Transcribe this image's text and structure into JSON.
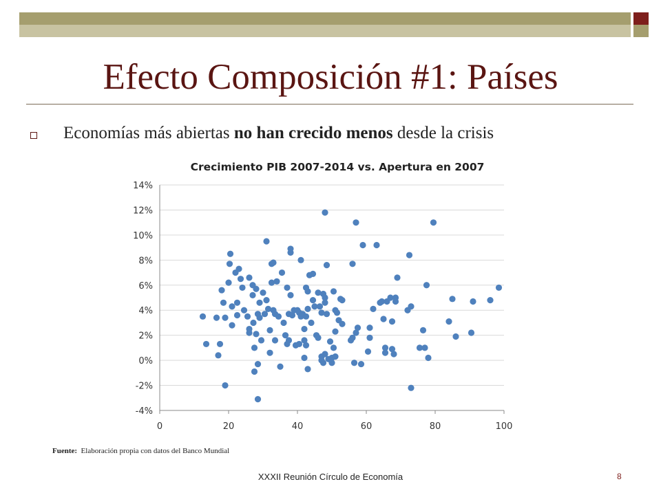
{
  "slide": {
    "title": "Efecto Composición #1: Países",
    "bullet": {
      "pre": "Economías más abiertas ",
      "bold": "no han crecido menos",
      "post": " desde la crisis"
    },
    "source_label": "Fuente:",
    "source_text": "Elaboración propia con datos del Banco Mundial",
    "footer": "XXXII Reunión Círculo de Economía",
    "page_number": "8"
  },
  "colors": {
    "title": "#5a1512",
    "accent_dark": "#7e1f1c",
    "accent_olive": "#a59e6e",
    "marker": "#4f81bd",
    "grid": "#d9d9d9"
  },
  "chart_data": {
    "type": "scatter",
    "title": "Crecimiento PIB 2007-2014 vs. Apertura en 2007",
    "xlabel": "",
    "ylabel": "",
    "xlim": [
      0,
      100
    ],
    "ylim": [
      -4,
      14
    ],
    "x_ticks": [
      0,
      20,
      40,
      60,
      80,
      100
    ],
    "x_tick_labels": [
      "0",
      "20",
      "40",
      "60",
      "80",
      "100"
    ],
    "y_ticks": [
      -4,
      -2,
      0,
      2,
      4,
      6,
      8,
      10,
      12,
      14
    ],
    "y_tick_labels": [
      "-4%",
      "-2%",
      "0%",
      "2%",
      "4%",
      "6%",
      "8%",
      "10%",
      "12%",
      "14%"
    ],
    "grid": "horizontal",
    "legend": "none",
    "points": [
      [
        12.5,
        3.5
      ],
      [
        13.5,
        1.3
      ],
      [
        16.5,
        3.4
      ],
      [
        17,
        0.4
      ],
      [
        17.5,
        1.3
      ],
      [
        18,
        5.6
      ],
      [
        18.5,
        4.6
      ],
      [
        19,
        -2.0
      ],
      [
        19,
        3.4
      ],
      [
        20,
        6.2
      ],
      [
        20.3,
        7.7
      ],
      [
        20.5,
        8.5
      ],
      [
        21,
        4.3
      ],
      [
        21,
        2.8
      ],
      [
        22,
        7.0
      ],
      [
        22.5,
        4.6
      ],
      [
        22.5,
        3.6
      ],
      [
        23,
        7.3
      ],
      [
        23.5,
        6.5
      ],
      [
        24,
        5.8
      ],
      [
        24.5,
        4.0
      ],
      [
        25.5,
        3.5
      ],
      [
        26,
        6.6
      ],
      [
        26,
        2.5
      ],
      [
        26,
        2.2
      ],
      [
        27,
        5.2
      ],
      [
        27,
        6.0
      ],
      [
        27.2,
        3.0
      ],
      [
        27.5,
        1.0
      ],
      [
        27.5,
        -0.9
      ],
      [
        28,
        5.7
      ],
      [
        28,
        2.1
      ],
      [
        28.5,
        3.7
      ],
      [
        28.5,
        -0.3
      ],
      [
        28.5,
        -3.1
      ],
      [
        29,
        4.6
      ],
      [
        29,
        3.4
      ],
      [
        29.5,
        1.6
      ],
      [
        30,
        5.4
      ],
      [
        30.5,
        3.7
      ],
      [
        31,
        9.5
      ],
      [
        31,
        4.8
      ],
      [
        31.5,
        4.1
      ],
      [
        32,
        2.4
      ],
      [
        32,
        0.6
      ],
      [
        32.5,
        7.7
      ],
      [
        32.5,
        6.2
      ],
      [
        33,
        7.8
      ],
      [
        33,
        4.0
      ],
      [
        33.5,
        3.7
      ],
      [
        33.5,
        1.6
      ],
      [
        34,
        6.3
      ],
      [
        34.5,
        3.5
      ],
      [
        35,
        -0.5
      ],
      [
        35.5,
        7.0
      ],
      [
        36,
        3.0
      ],
      [
        36.5,
        2.0
      ],
      [
        37,
        5.8
      ],
      [
        37,
        1.3
      ],
      [
        37.5,
        3.7
      ],
      [
        37.5,
        1.6
      ],
      [
        38,
        8.9
      ],
      [
        38,
        8.6
      ],
      [
        38,
        5.2
      ],
      [
        38.5,
        3.6
      ],
      [
        39,
        4.0
      ],
      [
        39.5,
        1.2
      ],
      [
        40,
        4.0
      ],
      [
        40.5,
        3.8
      ],
      [
        40.5,
        1.3
      ],
      [
        41,
        8.0
      ],
      [
        41,
        3.5
      ],
      [
        41.5,
        3.7
      ],
      [
        42,
        0.2
      ],
      [
        42,
        1.6
      ],
      [
        42,
        2.5
      ],
      [
        42.5,
        5.8
      ],
      [
        42.5,
        3.5
      ],
      [
        42.5,
        1.2
      ],
      [
        43,
        -0.7
      ],
      [
        43,
        4.1
      ],
      [
        43,
        5.5
      ],
      [
        43.5,
        6.8
      ],
      [
        44,
        3.0
      ],
      [
        44.5,
        4.8
      ],
      [
        44.5,
        6.9
      ],
      [
        45,
        4.3
      ],
      [
        45.5,
        2.0
      ],
      [
        46,
        1.8
      ],
      [
        46,
        5.4
      ],
      [
        46.5,
        4.3
      ],
      [
        47,
        0.3
      ],
      [
        47,
        0.0
      ],
      [
        47,
        3.8
      ],
      [
        47.5,
        5.3
      ],
      [
        47.5,
        -0.2
      ],
      [
        48,
        11.8
      ],
      [
        48,
        0.5
      ],
      [
        48,
        4.6
      ],
      [
        48,
        5.0
      ],
      [
        48.5,
        7.6
      ],
      [
        48.5,
        3.7
      ],
      [
        49,
        0.1
      ],
      [
        49.5,
        1.5
      ],
      [
        50,
        -0.2
      ],
      [
        50,
        0.2
      ],
      [
        50.5,
        1.0
      ],
      [
        50.5,
        5.5
      ],
      [
        51,
        2.3
      ],
      [
        51,
        4.0
      ],
      [
        51,
        0.3
      ],
      [
        51.5,
        3.8
      ],
      [
        52,
        3.2
      ],
      [
        52.5,
        4.9
      ],
      [
        53,
        4.8
      ],
      [
        53,
        2.9
      ],
      [
        55.5,
        1.6
      ],
      [
        56,
        1.8
      ],
      [
        56,
        7.7
      ],
      [
        56.5,
        -0.2
      ],
      [
        57,
        11.0
      ],
      [
        57,
        2.2
      ],
      [
        57.5,
        2.6
      ],
      [
        58.5,
        -0.3
      ],
      [
        59,
        9.2
      ],
      [
        60.5,
        0.7
      ],
      [
        61,
        1.8
      ],
      [
        61,
        2.6
      ],
      [
        62,
        4.1
      ],
      [
        63,
        9.2
      ],
      [
        64,
        4.6
      ],
      [
        64.5,
        4.7
      ],
      [
        65,
        3.3
      ],
      [
        65.5,
        1.0
      ],
      [
        65.5,
        0.6
      ],
      [
        66,
        4.7
      ],
      [
        67,
        5.0
      ],
      [
        67.5,
        3.1
      ],
      [
        67.5,
        0.9
      ],
      [
        68,
        0.5
      ],
      [
        68.5,
        5.0
      ],
      [
        68.5,
        4.7
      ],
      [
        69,
        6.6
      ],
      [
        72,
        4.0
      ],
      [
        72.5,
        8.4
      ],
      [
        73,
        -2.2
      ],
      [
        73,
        4.3
      ],
      [
        75.5,
        1.0
      ],
      [
        76.5,
        2.4
      ],
      [
        77,
        1.0
      ],
      [
        77.5,
        6.0
      ],
      [
        78,
        0.2
      ],
      [
        79.5,
        11.0
      ],
      [
        84,
        3.1
      ],
      [
        85,
        4.9
      ],
      [
        86,
        1.9
      ],
      [
        90.5,
        2.2
      ],
      [
        91,
        4.7
      ],
      [
        96,
        4.8
      ],
      [
        98.5,
        5.8
      ]
    ]
  }
}
